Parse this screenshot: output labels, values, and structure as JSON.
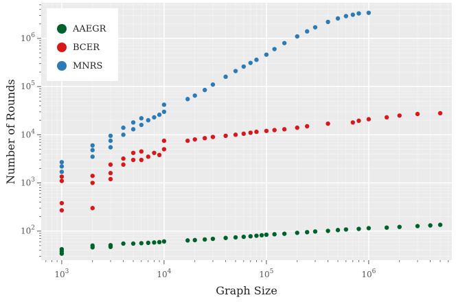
{
  "chart_data": {
    "type": "scatter",
    "title": "",
    "xlabel": "Graph Size",
    "ylabel": "Number of Rounds",
    "xscale": "log",
    "yscale": "log",
    "xlim": [
      630,
      6500000
    ],
    "ylim": [
      25,
      5500000
    ],
    "xticks": [
      {
        "value": 1000,
        "base": "10",
        "exp": "3"
      },
      {
        "value": 10000,
        "base": "10",
        "exp": "4"
      },
      {
        "value": 100000,
        "base": "10",
        "exp": "5"
      },
      {
        "value": 1000000,
        "base": "10",
        "exp": "6"
      }
    ],
    "yticks": [
      {
        "value": 100,
        "base": "10",
        "exp": "2"
      },
      {
        "value": 1000,
        "base": "10",
        "exp": "3"
      },
      {
        "value": 10000,
        "base": "10",
        "exp": "4"
      },
      {
        "value": 100000,
        "base": "10",
        "exp": "5"
      },
      {
        "value": 1000000,
        "base": "10",
        "exp": "6"
      }
    ],
    "grid": true,
    "legend_position": "top-left",
    "series": [
      {
        "name": "AAEGR",
        "color": "#00622b",
        "x": [
          1000,
          1000,
          1000,
          2000,
          2000,
          3000,
          3000,
          4000,
          5000,
          6000,
          7000,
          8000,
          9000,
          10000,
          17000,
          20000,
          25000,
          30000,
          40000,
          50000,
          60000,
          70000,
          80000,
          90000,
          100000,
          120000,
          150000,
          200000,
          250000,
          300000,
          400000,
          500000,
          600000,
          800000,
          1000000,
          1500000,
          2000000,
          3000000,
          4000000,
          5000000
        ],
        "y": [
          34,
          38,
          42,
          46,
          50,
          47,
          51,
          55,
          55,
          56,
          57,
          58,
          59,
          61,
          64,
          65,
          67,
          69,
          72,
          74,
          76,
          78,
          80,
          82,
          84,
          86,
          88,
          92,
          95,
          98,
          101,
          105,
          108,
          111,
          115,
          118,
          122,
          127,
          131,
          135
        ]
      },
      {
        "name": "BCER",
        "color": "#d7191c",
        "x": [
          1000,
          1000,
          1000,
          1000,
          2000,
          2000,
          2000,
          3000,
          3000,
          3000,
          4000,
          4000,
          5000,
          5000,
          6000,
          6000,
          7000,
          8000,
          9000,
          10000,
          10000,
          17000,
          20000,
          25000,
          30000,
          40000,
          50000,
          60000,
          70000,
          80000,
          100000,
          120000,
          150000,
          200000,
          250000,
          400000,
          700000,
          800000,
          1000000,
          1500000,
          2000000,
          3000000,
          5000000
        ],
        "y": [
          270,
          380,
          1100,
          1350,
          300,
          1000,
          1400,
          1200,
          1600,
          2400,
          2400,
          3200,
          3000,
          4200,
          3000,
          4500,
          3500,
          4200,
          3800,
          5000,
          7500,
          7500,
          8000,
          8500,
          9000,
          9500,
          10000,
          10500,
          11000,
          11500,
          12000,
          12500,
          13000,
          14000,
          15000,
          17000,
          18000,
          19500,
          21000,
          23000,
          25000,
          27000,
          28000
        ]
      },
      {
        "name": "MNRS",
        "color": "#2c7bb6",
        "x": [
          1000,
          1000,
          1000,
          2000,
          2000,
          2000,
          3000,
          3000,
          3000,
          4000,
          4000,
          5000,
          5000,
          6000,
          6000,
          7000,
          8000,
          9000,
          10000,
          10000,
          17000,
          20000,
          25000,
          30000,
          40000,
          50000,
          60000,
          70000,
          80000,
          100000,
          120000,
          150000,
          200000,
          250000,
          300000,
          400000,
          500000,
          600000,
          700000,
          800000,
          1000000
        ],
        "y": [
          1700,
          2200,
          2700,
          3500,
          4800,
          6000,
          5500,
          7500,
          9500,
          10000,
          14000,
          13000,
          18000,
          16000,
          22000,
          20000,
          23000,
          26000,
          30000,
          42000,
          55000,
          65000,
          85000,
          110000,
          160000,
          210000,
          260000,
          310000,
          360000,
          460000,
          600000,
          800000,
          1100000,
          1400000,
          1700000,
          2200000,
          2600000,
          2900000,
          3100000,
          3300000,
          3400000
        ]
      }
    ]
  }
}
